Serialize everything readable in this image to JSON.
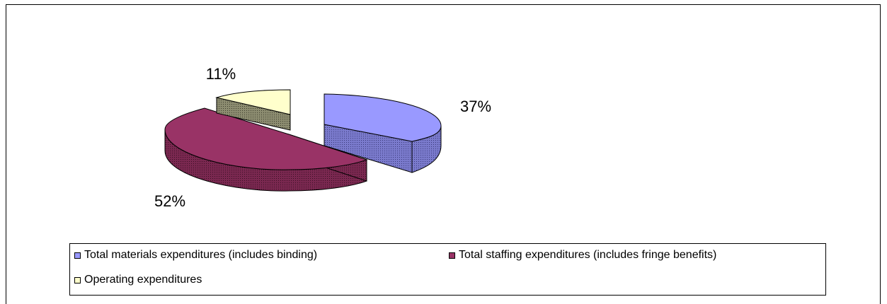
{
  "chart_data": {
    "type": "pie",
    "style": "3d-exploded",
    "title": "",
    "categories": [
      "Total materials expenditures (includes binding)",
      "Total staffing expenditures (includes fringe benefits)",
      "Operating expenditures"
    ],
    "values": [
      37,
      52,
      11
    ],
    "labels": [
      "37%",
      "52%",
      "11%"
    ],
    "colors": [
      "#9999ff",
      "#993366",
      "#ffffcc"
    ],
    "legend_position": "bottom"
  }
}
